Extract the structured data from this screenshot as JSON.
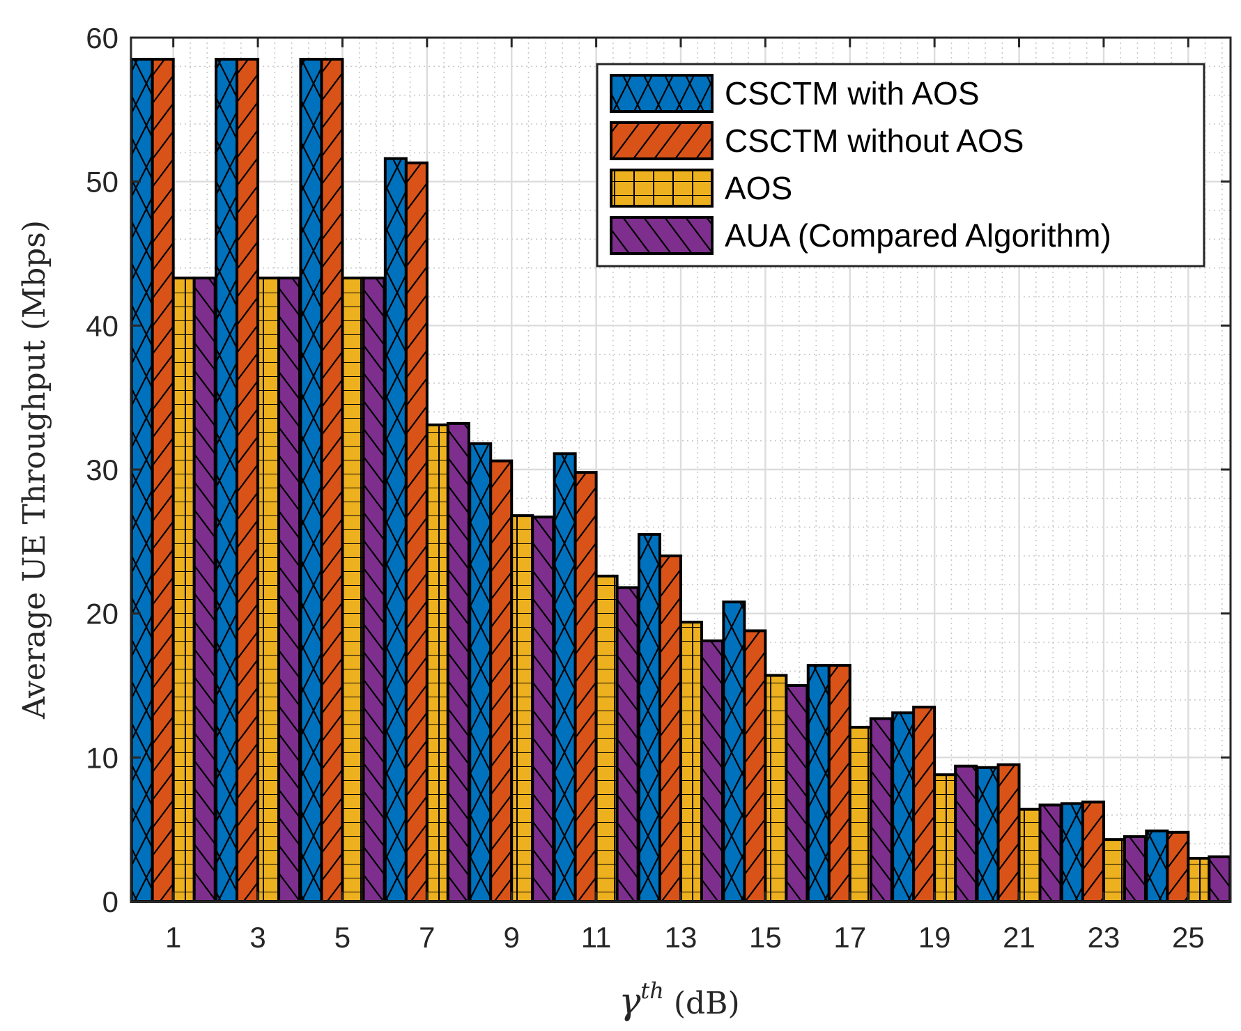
{
  "chart_data": {
    "type": "bar",
    "categories": [
      "1",
      "3",
      "5",
      "7",
      "9",
      "11",
      "13",
      "15",
      "17",
      "19",
      "21",
      "23",
      "25"
    ],
    "series": [
      {
        "name": "CSCTM with AOS",
        "color": "#0072BD",
        "pattern": "crosshatch",
        "values": [
          58.5,
          58.5,
          58.5,
          51.6,
          31.8,
          31.1,
          25.5,
          20.8,
          16.4,
          13.1,
          9.3,
          6.8,
          4.9
        ]
      },
      {
        "name": "CSCTM without AOS",
        "color": "#D95319",
        "pattern": "diagonal",
        "values": [
          58.5,
          58.5,
          58.5,
          51.3,
          30.6,
          29.8,
          24.0,
          18.8,
          16.4,
          13.5,
          9.5,
          6.9,
          4.8
        ]
      },
      {
        "name": "AOS",
        "color": "#EDB120",
        "pattern": "grid",
        "values": [
          43.3,
          43.3,
          43.3,
          33.1,
          26.8,
          22.6,
          19.4,
          15.7,
          12.1,
          8.8,
          6.4,
          4.3,
          3.0
        ]
      },
      {
        "name": "AUA (Compared Algorithm)",
        "color": "#7E2F8E",
        "pattern": "backdiagonal",
        "values": [
          43.3,
          43.3,
          43.3,
          33.2,
          26.7,
          21.8,
          18.1,
          15.0,
          12.7,
          9.4,
          6.7,
          4.5,
          3.1
        ]
      }
    ],
    "ylim": [
      0,
      60
    ],
    "yticks": [
      "0",
      "10",
      "20",
      "30",
      "40",
      "50",
      "60"
    ],
    "ylabel": "Average UE Throughput (Mbps)",
    "xlabel_symbol": "γ",
    "xlabel_superscript": "th",
    "xlabel_unit": " (dB)",
    "grid": true,
    "legend_position": "top-right"
  }
}
